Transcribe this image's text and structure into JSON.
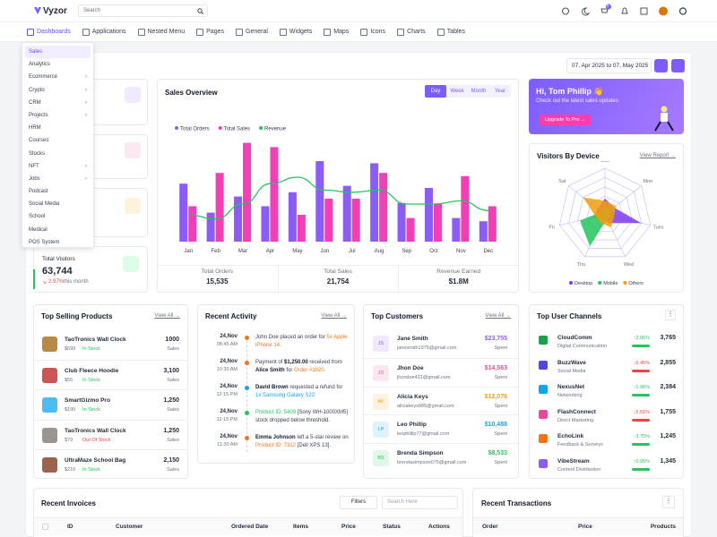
{
  "header": {
    "logo": "Vyzor",
    "search": "Search",
    "cart_badge": "5"
  },
  "nav": [
    "Dashboards",
    "Applications",
    "Nested Menu",
    "Pages",
    "General",
    "Widgets",
    "Maps",
    "Icons",
    "Charts",
    "Tables"
  ],
  "dashboards_menu": {
    "selected_index": 0,
    "items": [
      {
        "label": "Sales"
      },
      {
        "label": "Analytics"
      },
      {
        "label": "Ecommerce",
        "submenu": true
      },
      {
        "label": "Crypto",
        "submenu": true
      },
      {
        "label": "CRM",
        "submenu": true
      },
      {
        "label": "Projects",
        "submenu": true
      },
      {
        "label": "HRM"
      },
      {
        "label": "Courses"
      },
      {
        "label": "Stocks"
      },
      {
        "label": "NFT",
        "submenu": true
      },
      {
        "label": "Jobs",
        "submenu": true
      },
      {
        "label": "Podcast"
      },
      {
        "label": "Social Media"
      },
      {
        "label": "School"
      },
      {
        "label": "Medical"
      },
      {
        "label": "POS System"
      }
    ]
  },
  "date_range": "07, Apr 2025 to 07, May 2025",
  "total_visitors": {
    "label": "Total Visitors",
    "value": "63,744",
    "change": "2.97%",
    "period": "this month"
  },
  "sales_overview": {
    "title": "Sales Overview",
    "tabs": [
      "Day",
      "Week",
      "Month",
      "Year"
    ],
    "selected_tab": 0,
    "summary": [
      {
        "label": "Total Orders",
        "value": "15,535"
      },
      {
        "label": "Total Sales",
        "value": "21,754"
      },
      {
        "label": "Revenue Earned",
        "value": "$1.8M"
      }
    ]
  },
  "chart_data": [
    {
      "type": "bar",
      "categories": [
        "Jan",
        "Feb",
        "Mar",
        "Apr",
        "May",
        "Jun",
        "Jul",
        "Aug",
        "Sep",
        "Oct",
        "Nov",
        "Dec"
      ],
      "ylim": [
        0,
        100
      ],
      "series": [
        {
          "name": "Total Orders",
          "color": "#8b5cf6",
          "values": [
            54,
            27,
            42,
            33,
            46,
            75,
            52,
            73,
            36,
            50,
            22,
            19
          ]
        },
        {
          "name": "Total Sales",
          "color": "#f23fb5",
          "values": [
            33,
            64,
            92,
            88,
            25,
            40,
            40,
            64,
            22,
            35,
            61,
            33
          ]
        },
        {
          "name": "Revenue",
          "type": "line",
          "color": "#22c55e",
          "values": [
            25,
            21,
            35,
            54,
            60,
            48,
            46,
            48,
            35,
            35,
            38,
            29
          ]
        }
      ]
    },
    {
      "type": "radar",
      "categories": [
        "Sun",
        "Mon",
        "Tues",
        "Wed",
        "Thu",
        "Fri",
        "Sat"
      ],
      "rlim": [
        0,
        100
      ],
      "series": [
        {
          "name": "Desktop",
          "color": "#7c3aed",
          "values": [
            35,
            25,
            80,
            20,
            10,
            25,
            20
          ]
        },
        {
          "name": "Mobile",
          "color": "#22c55e",
          "values": [
            20,
            15,
            15,
            10,
            75,
            55,
            10
          ]
        },
        {
          "name": "Others",
          "color": "#f59e0b",
          "values": [
            30,
            30,
            20,
            30,
            20,
            20,
            60
          ]
        }
      ]
    }
  ],
  "promo": {
    "title": "Hi, Tom Phillip 👋",
    "text": "Check out the latest sales updates.",
    "button": "Upgrade To Pro →"
  },
  "visitors_by_device": {
    "title": "Visitors By Device",
    "link": "View Report →"
  },
  "top_selling": {
    "title": "Top Selling Products",
    "link": "View All →",
    "items": [
      {
        "name": "TaoTronics Wall Clock",
        "price": "$699",
        "stock": {
          "text": "In Stock",
          "color": "#22c55e"
        },
        "sales": "1000",
        "sales_label": "Sales"
      },
      {
        "name": "Club Fleece Hoodie",
        "price": "$55",
        "stock": {
          "text": "In Stock",
          "color": "#22c55e"
        },
        "sales": "3,100",
        "sales_label": "Sales"
      },
      {
        "name": "SmartGizmo Pro",
        "price": "$199",
        "stock": {
          "text": "In Stock",
          "color": "#22c55e"
        },
        "sales": "1,250",
        "sales_label": "Sales"
      },
      {
        "name": "TaoTronics Wall Clock",
        "price": "$79",
        "stock": {
          "text": "Out Of Stock",
          "color": "#ef4444"
        },
        "sales": "1,250",
        "sales_label": "Sales"
      },
      {
        "name": "UltraMaze School Bag",
        "price": "$210",
        "stock": {
          "text": "In Stock",
          "color": "#22c55e"
        },
        "sales": "2,150",
        "sales_label": "Sales"
      }
    ]
  },
  "recent_activity": {
    "title": "Recent Activity",
    "link": "View All →",
    "items": [
      {
        "date": "24,Nov",
        "time": "08:45 AM",
        "color": "#f97316",
        "parts": [
          {
            "text": "John Doe placed an order for "
          },
          {
            "text": "5x Apple iPhone 14.",
            "color": "#f97316"
          }
        ]
      },
      {
        "date": "24,Nov",
        "time": "10:30 AM",
        "color": "#f97316",
        "parts": [
          {
            "text": "Payment of "
          },
          {
            "text": "$1,250.00",
            "bold": true
          },
          {
            "text": " received from "
          },
          {
            "text": "Alice Smith",
            "bold": true
          },
          {
            "text": " for "
          },
          {
            "text": "Order #1020.",
            "color": "#f97316"
          }
        ]
      },
      {
        "date": "24,Nov",
        "time": "12:15 PM",
        "color": "#0ea5e9",
        "parts": [
          {
            "text": "David Brown",
            "bold": true
          },
          {
            "text": " requested a refund for "
          },
          {
            "text": "1x Samsung Galaxy S22.",
            "color": "#0ea5e9"
          }
        ]
      },
      {
        "date": "24,Nov",
        "time": "12:15 PM",
        "color": "#22c55e",
        "parts": [
          {
            "text": "Product ID: 5409",
            "color": "#22c55e"
          },
          {
            "text": " [Sony WH-1000XM5] stock dropped below threshold."
          }
        ]
      },
      {
        "date": "24,Nov",
        "time": "11:30 AM",
        "color": "#f97316",
        "parts": [
          {
            "text": "Emma Johnson",
            "bold": true
          },
          {
            "text": " left a 5-star review on "
          },
          {
            "text": "Product ID: 7312",
            "color": "#f97316"
          },
          {
            "text": " [Dell XPS 13]."
          }
        ]
      }
    ]
  },
  "top_customers": {
    "title": "Top Customers",
    "link": "View All →",
    "items": [
      {
        "initials": "JS",
        "name": "Jane Smith",
        "email": "janesmith1975@gmail.com",
        "amount": "$23,755",
        "amount_label": "Spent",
        "color": "#8b5cf6"
      },
      {
        "initials": "JD",
        "name": "Jhon Doe",
        "email": "jhondoe431@gmail.com",
        "amount": "$14,563",
        "amount_label": "Spent",
        "color": "#ec4899"
      },
      {
        "initials": "AK",
        "name": "Alicia Keys",
        "email": "aliciakeys885@gmail.com",
        "amount": "$12,076",
        "amount_label": "Spent",
        "color": "#f59e0b"
      },
      {
        "initials": "LP",
        "name": "Leo Phillip",
        "email": "leophillip77@gmail.com",
        "amount": "$10,488",
        "amount_label": "Spent",
        "color": "#0ea5e9"
      },
      {
        "initials": "BS",
        "name": "Brenda Simpson",
        "email": "brendasimpson075@gmail.com",
        "amount": "$8,533",
        "amount_label": "Spent",
        "color": "#22c55e"
      }
    ]
  },
  "top_user_channels": {
    "title": "Top User Channels",
    "items": [
      {
        "name": "CloudComm",
        "category": "Digital Communication",
        "change": "↑2.06%",
        "value": "3,765",
        "color": "#22c55e",
        "icon_color": "#16a34a"
      },
      {
        "name": "BuzzWave",
        "category": "Social Media",
        "change": "↓6.45%",
        "value": "2,855",
        "color": "#ef4444",
        "icon_color": "#4f46e5"
      },
      {
        "name": "NexusNet",
        "category": "Networking",
        "change": "↑1.96%",
        "value": "2,384",
        "color": "#22c55e",
        "icon_color": "#0ea5e9"
      },
      {
        "name": "FlashConnect",
        "category": "Direct Marketing",
        "change": "↓5.51%",
        "value": "1,755",
        "color": "#ef4444",
        "icon_color": "#ec4899"
      },
      {
        "name": "EchoLink",
        "category": "Feedback & Surveys",
        "change": "↑3.75%",
        "value": "1,245",
        "color": "#22c55e",
        "icon_color": "#f97316"
      },
      {
        "name": "VibeStream",
        "category": "Content Distribution",
        "change": "↑0.95%",
        "value": "1,345",
        "color": "#22c55e",
        "icon_color": "#8b5cf6"
      }
    ]
  },
  "recent_invoices": {
    "title": "Recent Invoices",
    "filter": "Filters",
    "search": "Search Here",
    "columns": [
      "ID",
      "Customer",
      "Ordered Date",
      "Items",
      "Price",
      "Status",
      "Actions"
    ]
  },
  "recent_transactions": {
    "title": "Recent Transactions",
    "columns": [
      "Order",
      "Price",
      "Products"
    ]
  }
}
